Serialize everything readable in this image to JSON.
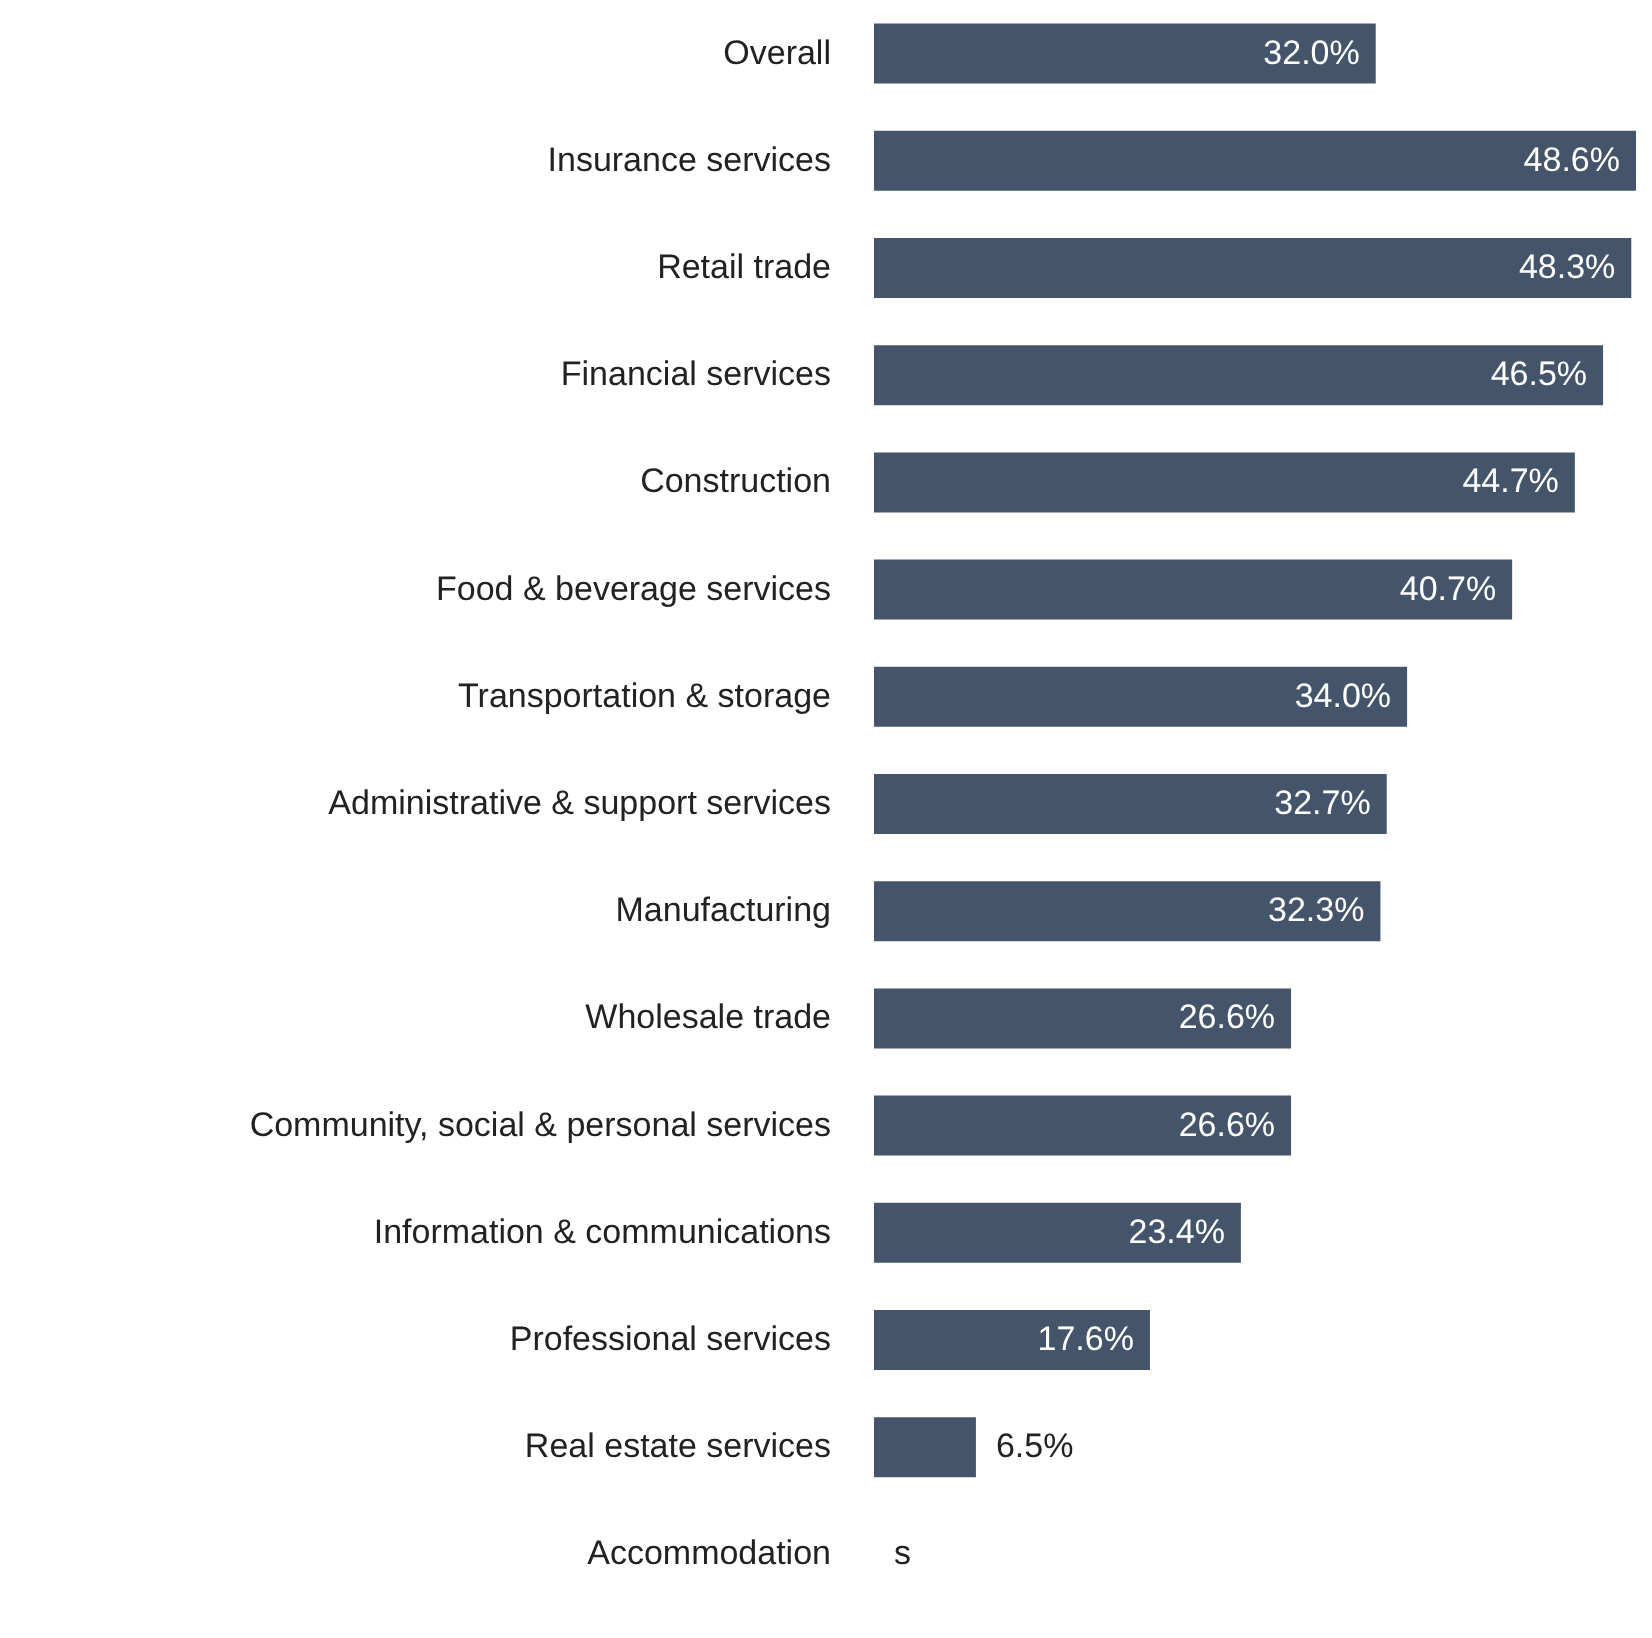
{
  "chart_data": {
    "type": "bar",
    "orientation": "horizontal",
    "categories": [
      "Overall",
      "Insurance services",
      "Retail trade",
      "Financial services",
      "Construction",
      "Food & beverage services",
      "Transportation & storage",
      "Administrative & support services",
      "Manufacturing",
      "Wholesale trade",
      "Community, social & personal services",
      "Information & communications",
      "Professional services",
      "Real estate services",
      "Accommodation"
    ],
    "values": [
      32.0,
      48.6,
      48.3,
      46.5,
      44.7,
      40.7,
      34.0,
      32.7,
      32.3,
      26.6,
      26.6,
      23.4,
      17.6,
      6.5,
      null
    ],
    "value_labels": [
      "32.0%",
      "48.6%",
      "48.3%",
      "46.5%",
      "44.7%",
      "40.7%",
      "34.0%",
      "32.7%",
      "32.3%",
      "26.6%",
      "26.6%",
      "23.4%",
      "17.6%",
      "6.5%",
      "s"
    ],
    "color": "#44546a"
  }
}
